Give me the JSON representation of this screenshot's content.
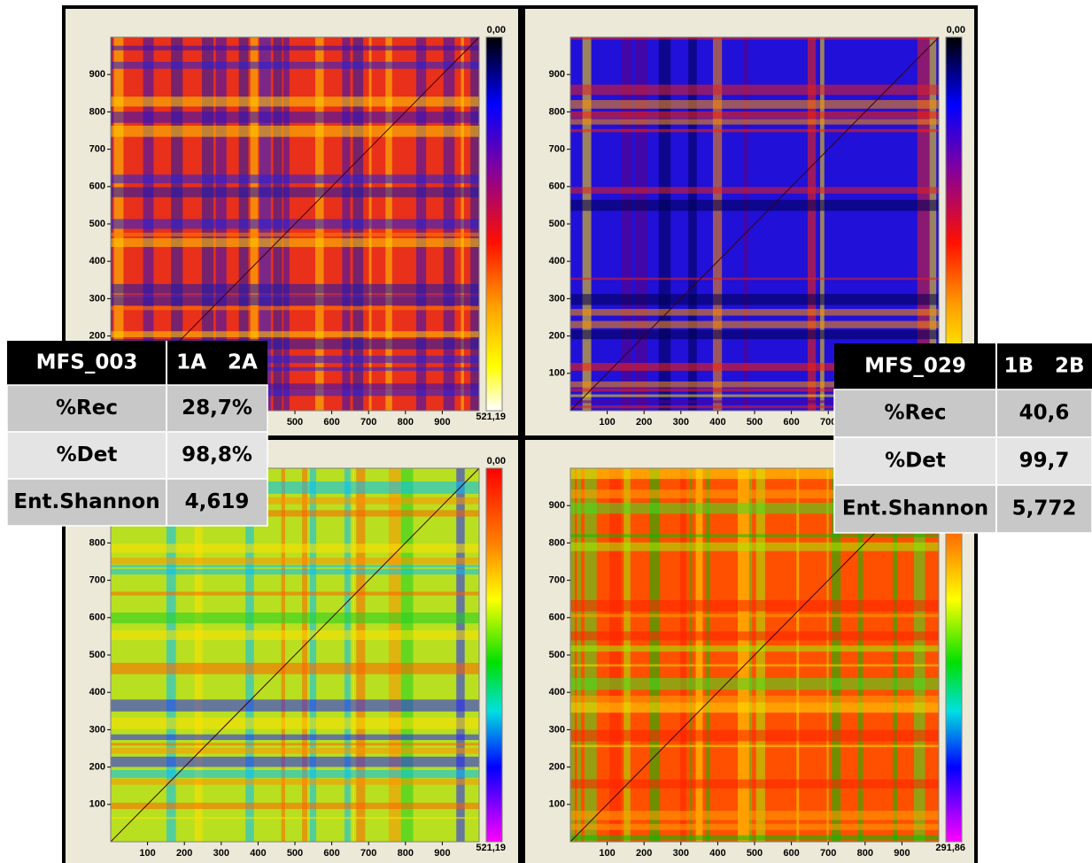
{
  "panels": [
    {
      "xlim": [
        0,
        1000
      ],
      "ylim": [
        0,
        1000
      ],
      "xticks": [
        500,
        600,
        700,
        800,
        900
      ],
      "yticks": [
        200,
        300,
        400,
        500,
        600,
        700,
        800,
        900
      ],
      "colorbar_top": "0,00",
      "colorbar_bottom": "521,19"
    },
    {
      "xlim": [
        0,
        1000
      ],
      "ylim": [
        0,
        1000
      ],
      "xticks": [
        100,
        200,
        300,
        400,
        500,
        600,
        700
      ],
      "yticks": [
        100,
        200,
        300,
        400,
        500,
        600,
        700,
        800,
        900
      ],
      "colorbar_top": "0,00"
    },
    {
      "xlim": [
        0,
        1000
      ],
      "ylim": [
        0,
        1000
      ],
      "xticks": [
        100,
        200,
        300,
        400,
        500,
        600,
        700,
        800,
        900
      ],
      "yticks": [
        100,
        200,
        300,
        400,
        500,
        600,
        700,
        800
      ],
      "colorbar_top": "0,00",
      "colorbar_bottom": "521,19"
    },
    {
      "xlim": [
        0,
        1000
      ],
      "ylim": [
        0,
        1000
      ],
      "xticks": [
        100,
        200,
        300,
        400,
        500,
        600,
        700,
        800,
        900
      ],
      "yticks": [
        100,
        200,
        300,
        400,
        500,
        600,
        700,
        800,
        900
      ],
      "colorbar_bottom": "291,86"
    }
  ],
  "tables": [
    {
      "header": [
        "MFS_003",
        "1A   2A"
      ],
      "rows": [
        [
          "%Rec",
          "28,7%"
        ],
        [
          "%Det",
          "98,8%"
        ],
        [
          "Ent.Shannon",
          "4,619"
        ]
      ]
    },
    {
      "header": [
        "MFS_029",
        "1B   2B"
      ],
      "rows": [
        [
          "%Rec",
          "40,6"
        ],
        [
          "%Det",
          "99,7"
        ],
        [
          "Ent.Shannon",
          "5,772"
        ]
      ]
    }
  ]
}
